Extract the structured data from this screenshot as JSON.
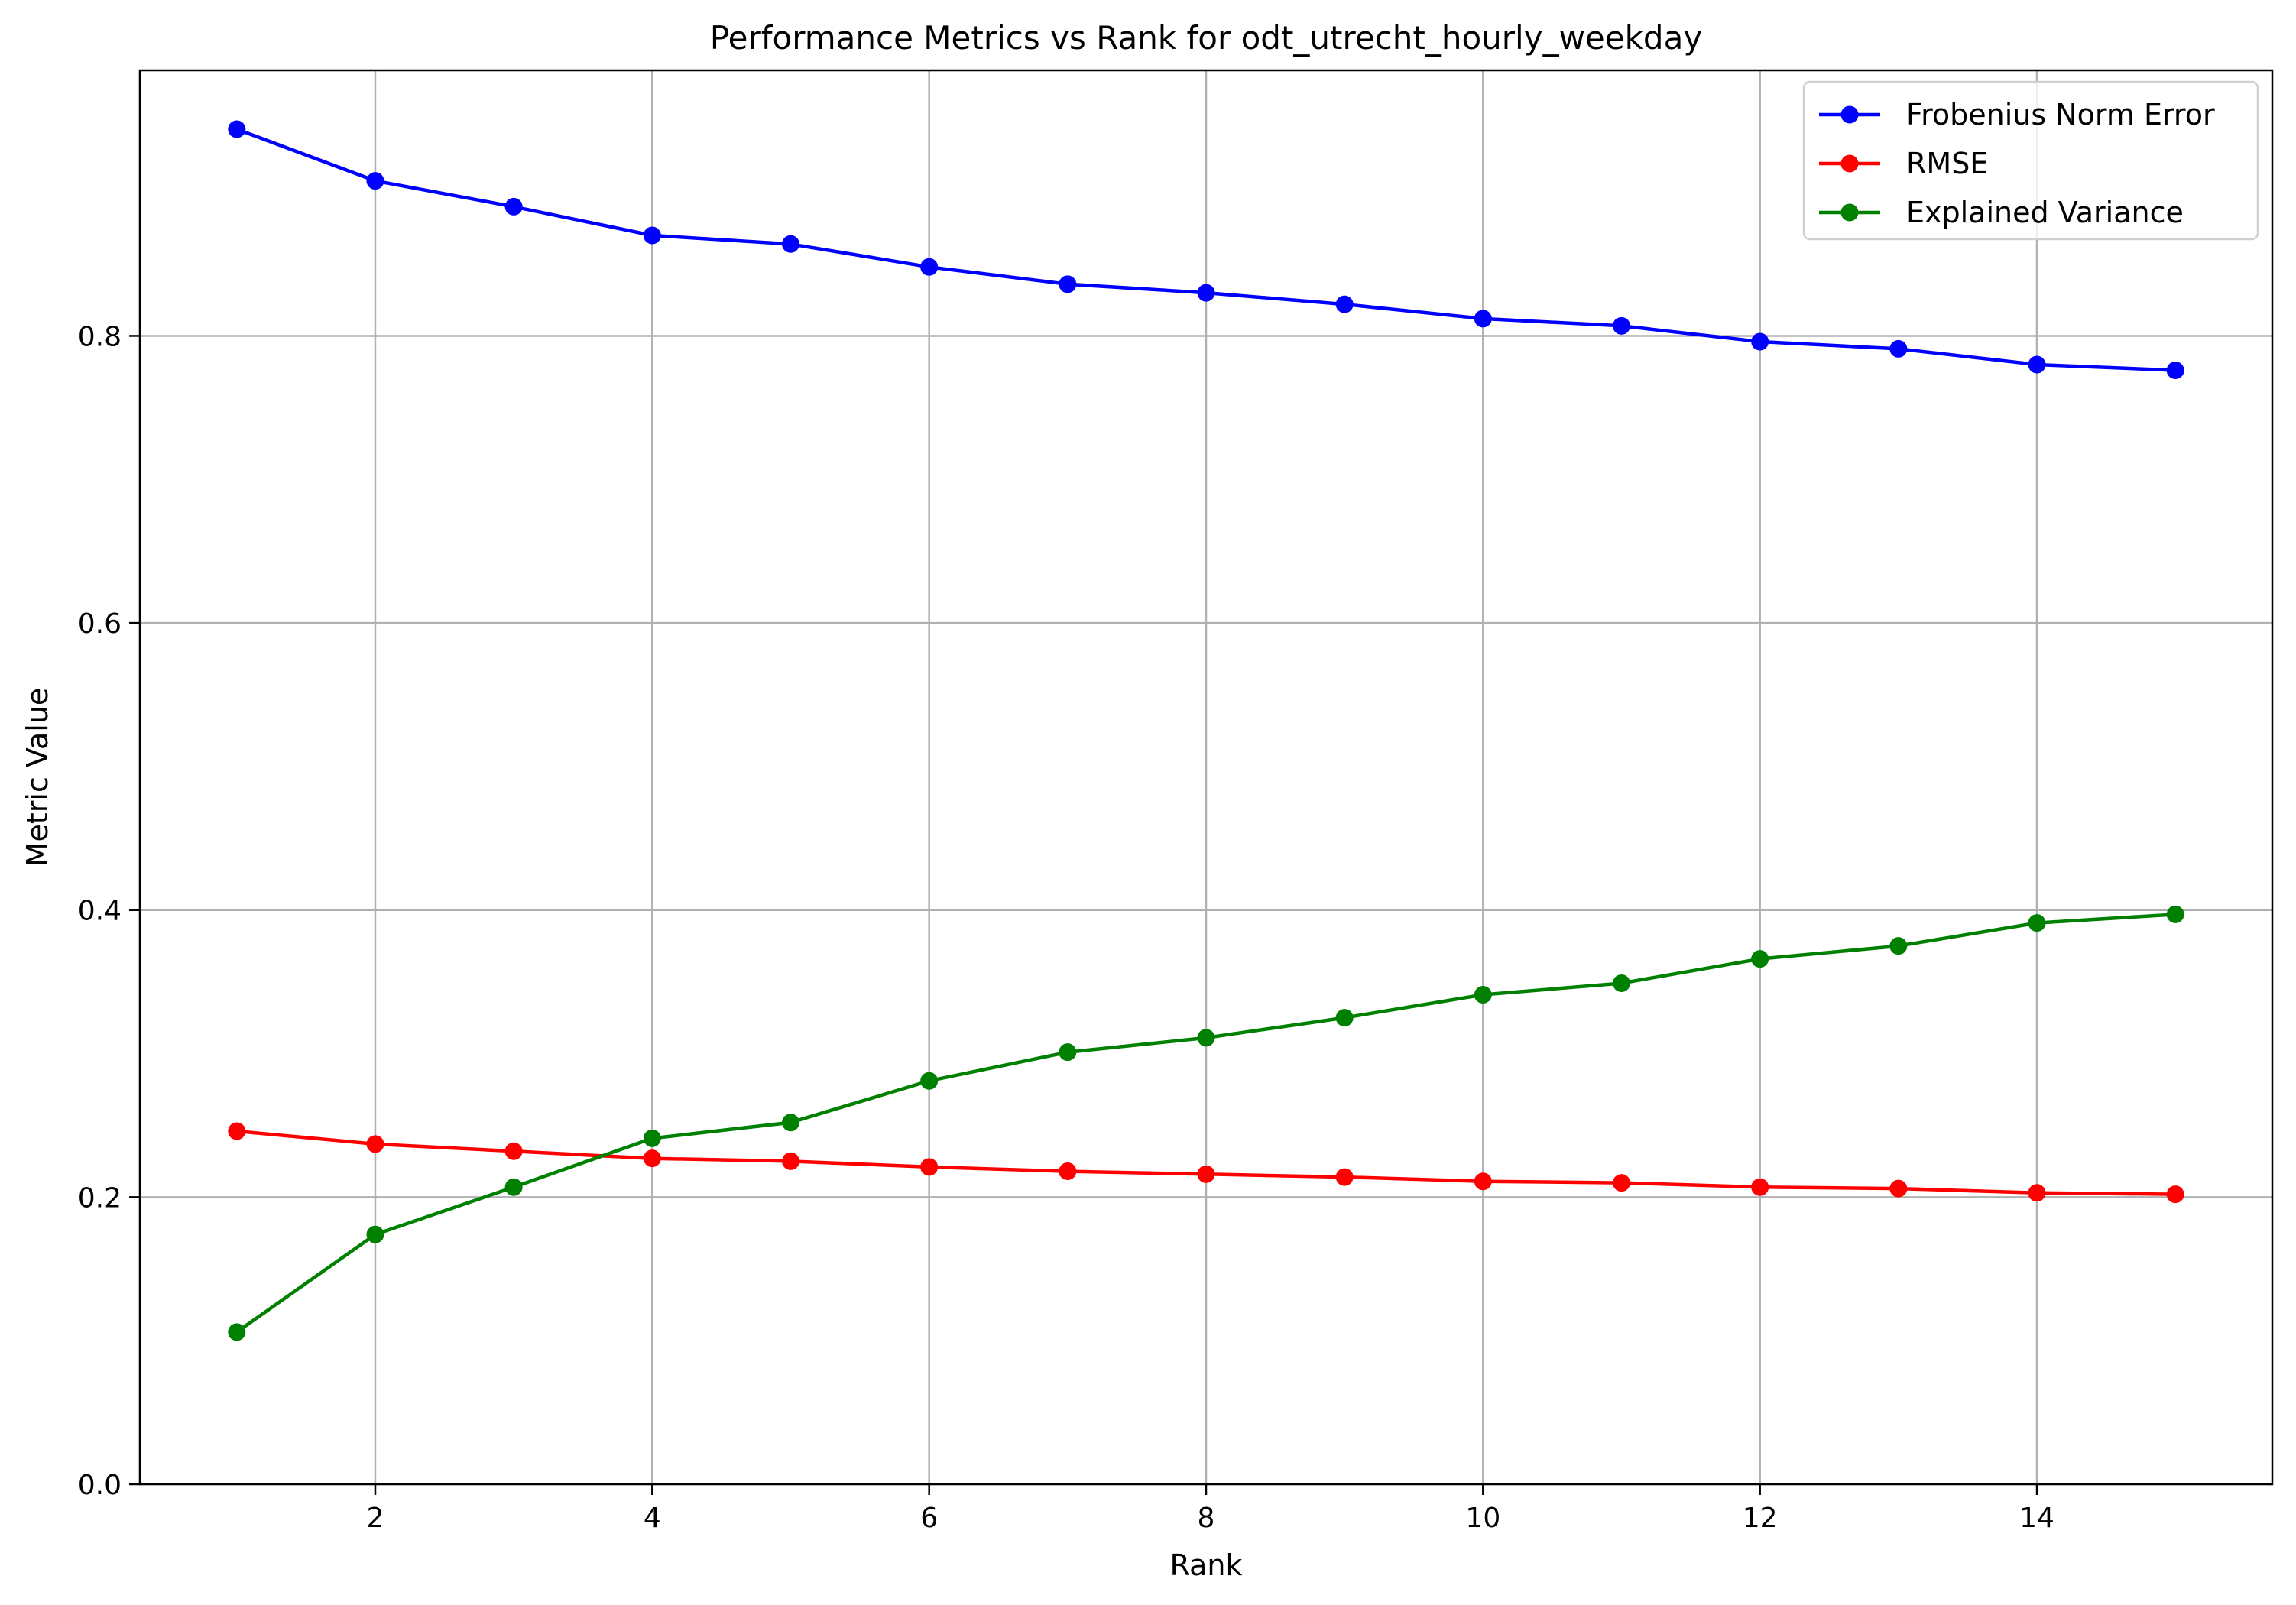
{
  "chart_data": {
    "type": "line",
    "title": "Performance Metrics vs Rank for odt_utrecht_hourly_weekday",
    "xlabel": "Rank",
    "ylabel": "Metric Value",
    "xlim": [
      0.3,
      15.7
    ],
    "ylim": [
      0.0,
      0.985
    ],
    "x_ticks": [
      2,
      4,
      6,
      8,
      10,
      12,
      14
    ],
    "x_tick_labels": [
      "2",
      "4",
      "6",
      "8",
      "10",
      "12",
      "14"
    ],
    "y_ticks": [
      0.0,
      0.2,
      0.4,
      0.6,
      0.8
    ],
    "y_tick_labels": [
      "0.0",
      "0.2",
      "0.4",
      "0.6",
      "0.8"
    ],
    "grid": true,
    "legend_position": "top-right",
    "x": [
      1,
      2,
      3,
      4,
      5,
      6,
      7,
      8,
      9,
      10,
      11,
      12,
      13,
      14,
      15
    ],
    "series": [
      {
        "name": "Frobenius Norm Error",
        "color": "#0000ff",
        "values": [
          0.944,
          0.908,
          0.89,
          0.87,
          0.864,
          0.848,
          0.836,
          0.83,
          0.822,
          0.812,
          0.807,
          0.796,
          0.791,
          0.78,
          0.776
        ]
      },
      {
        "name": "RMSE",
        "color": "#ff0000",
        "values": [
          0.246,
          0.237,
          0.232,
          0.227,
          0.225,
          0.221,
          0.218,
          0.216,
          0.214,
          0.211,
          0.21,
          0.207,
          0.206,
          0.203,
          0.202
        ]
      },
      {
        "name": "Explained Variance",
        "color": "#008000",
        "values": [
          0.106,
          0.174,
          0.207,
          0.241,
          0.252,
          0.281,
          0.301,
          0.311,
          0.325,
          0.341,
          0.349,
          0.366,
          0.375,
          0.391,
          0.397
        ]
      }
    ]
  }
}
